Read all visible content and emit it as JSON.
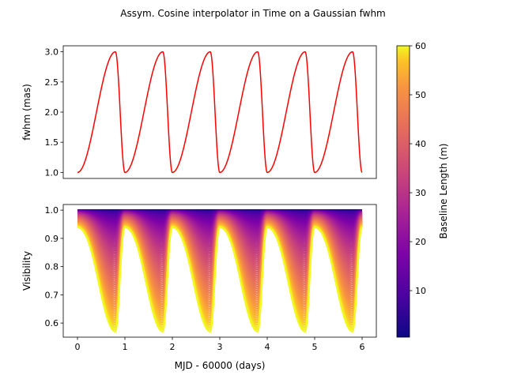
{
  "figure": {
    "title": "Assym. Cosine interpolator in Time on a Gaussian fwhm"
  },
  "chart_data": [
    {
      "type": "line",
      "ylabel": "fwhm (mas)",
      "xlabel": "",
      "xlim": [
        -0.3,
        6.3
      ],
      "ylim": [
        0.9,
        3.1
      ],
      "yticks": [
        1.0,
        1.5,
        2.0,
        2.5,
        3.0
      ],
      "ytick_labels": [
        "1.0",
        "1.5",
        "2.0",
        "2.5",
        "3.0"
      ],
      "show_xticks": false,
      "series": [
        {
          "color": "#ff0000",
          "model": "asymmetric cosine, period 1 day, rise 0.8 day, fall 0.2 day",
          "min": 1.0,
          "max": 3.0,
          "x_range": [
            0,
            6
          ],
          "period": 1.0,
          "rise_fraction": 0.8
        }
      ]
    },
    {
      "type": "line",
      "ylabel": "Visibility",
      "xlabel": "MJD - 60000 (days)",
      "xlim": [
        -0.3,
        6.3
      ],
      "ylim": [
        0.55,
        1.02
      ],
      "yticks": [
        0.6,
        0.7,
        0.8,
        0.9,
        1.0
      ],
      "ytick_labels": [
        "0.6",
        "0.7",
        "0.8",
        "0.9",
        "1.0"
      ],
      "xticks": [
        0,
        1,
        2,
        3,
        4,
        5,
        6
      ],
      "xtick_labels": [
        "0",
        "1",
        "2",
        "3",
        "4",
        "5",
        "6"
      ],
      "colormap": "plasma",
      "baseline_range": [
        0.5,
        60
      ],
      "series_description": "One visibility curve per baseline length; curves range from ~1.0 (short baselines) down to a minimum of ~0.57 (60 m baseline)"
    }
  ],
  "colorbar": {
    "label": "Baseline Length (m)",
    "colormap": "plasma",
    "range": [
      0.5,
      60
    ],
    "ticks": [
      10,
      20,
      30,
      40,
      50,
      60
    ],
    "tick_labels": [
      "10",
      "20",
      "30",
      "40",
      "50",
      "60"
    ]
  }
}
